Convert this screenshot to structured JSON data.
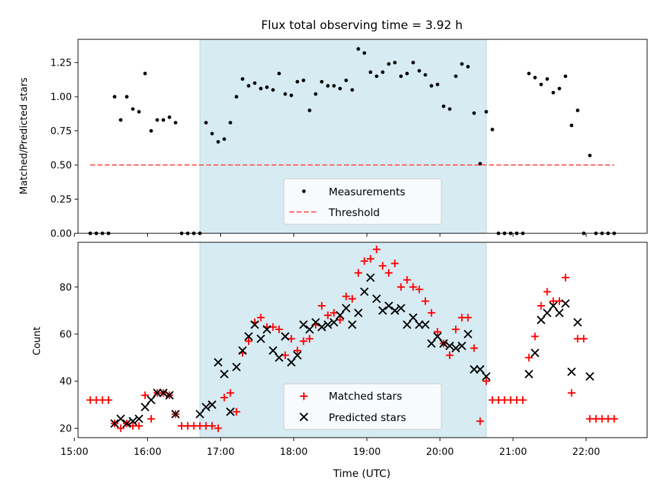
{
  "chart_data": [
    {
      "type": "scatter",
      "title": "Flux total observing time = 3.92 h",
      "xlabel": "",
      "ylabel": "Matched/Predicted stars",
      "xlim": [
        "15:03",
        "22:50"
      ],
      "ylim": [
        0,
        1.42
      ],
      "yticks": [
        0.0,
        0.25,
        0.5,
        0.75,
        1.0,
        1.25
      ],
      "yticklabels": [
        "0.00",
        "0.25",
        "0.50",
        "0.75",
        "1.00",
        "1.25"
      ],
      "highlight_span": [
        "16:43",
        "20:38"
      ],
      "legend": {
        "position": "lower-center",
        "entries": [
          "Measurements",
          "Threshold"
        ]
      },
      "threshold": {
        "name": "Threshold",
        "value": 0.5,
        "x": [
          "15:13",
          "22:23"
        ],
        "color": "#ff6666"
      },
      "series": [
        {
          "name": "Measurements",
          "color": "#000000",
          "points": [
            [
              "15:13",
              0
            ],
            [
              "15:18",
              0
            ],
            [
              "15:23",
              0
            ],
            [
              "15:28",
              0
            ],
            [
              "15:33",
              1.0
            ],
            [
              "15:38",
              0.83
            ],
            [
              "15:43",
              1.0
            ],
            [
              "15:48",
              0.91
            ],
            [
              "15:53",
              0.89
            ],
            [
              "15:58",
              1.17
            ],
            [
              "16:03",
              0.75
            ],
            [
              "16:08",
              0.83
            ],
            [
              "16:13",
              0.83
            ],
            [
              "16:18",
              0.85
            ],
            [
              "16:23",
              0.81
            ],
            [
              "16:28",
              0
            ],
            [
              "16:33",
              0
            ],
            [
              "16:38",
              0
            ],
            [
              "16:43",
              0
            ],
            [
              "16:48",
              0.81
            ],
            [
              "16:53",
              0.73
            ],
            [
              "16:58",
              0.67
            ],
            [
              "17:03",
              0.69
            ],
            [
              "17:08",
              0.81
            ],
            [
              "17:13",
              1.0
            ],
            [
              "17:18",
              1.13
            ],
            [
              "17:23",
              1.08
            ],
            [
              "17:28",
              1.1
            ],
            [
              "17:33",
              1.06
            ],
            [
              "17:38",
              1.07
            ],
            [
              "17:43",
              1.05
            ],
            [
              "17:48",
              1.17
            ],
            [
              "17:53",
              1.02
            ],
            [
              "17:58",
              1.01
            ],
            [
              "18:03",
              1.11
            ],
            [
              "18:08",
              1.12
            ],
            [
              "18:13",
              0.9
            ],
            [
              "18:18",
              1.02
            ],
            [
              "18:23",
              1.11
            ],
            [
              "18:28",
              1.08
            ],
            [
              "18:33",
              1.08
            ],
            [
              "18:38",
              1.06
            ],
            [
              "18:43",
              1.12
            ],
            [
              "18:48",
              1.05
            ],
            [
              "18:53",
              1.35
            ],
            [
              "18:58",
              1.32
            ],
            [
              "19:03",
              1.18
            ],
            [
              "19:08",
              1.15
            ],
            [
              "19:13",
              1.18
            ],
            [
              "19:18",
              1.24
            ],
            [
              "19:23",
              1.25
            ],
            [
              "19:28",
              1.15
            ],
            [
              "19:33",
              1.17
            ],
            [
              "19:38",
              1.25
            ],
            [
              "19:43",
              1.19
            ],
            [
              "19:48",
              1.16
            ],
            [
              "19:53",
              1.08
            ],
            [
              "19:58",
              1.09
            ],
            [
              "20:03",
              0.93
            ],
            [
              "20:08",
              0.91
            ],
            [
              "20:13",
              1.15
            ],
            [
              "20:18",
              1.24
            ],
            [
              "20:23",
              1.22
            ],
            [
              "20:28",
              0.88
            ],
            [
              "20:33",
              0.51
            ],
            [
              "20:38",
              0.89
            ],
            [
              "20:43",
              0.76
            ],
            [
              "20:48",
              0
            ],
            [
              "20:53",
              0
            ],
            [
              "20:58",
              0
            ],
            [
              "21:03",
              0
            ],
            [
              "21:08",
              0
            ],
            [
              "21:13",
              1.17
            ],
            [
              "21:18",
              1.14
            ],
            [
              "21:23",
              1.09
            ],
            [
              "21:28",
              1.13
            ],
            [
              "21:33",
              1.03
            ],
            [
              "21:38",
              1.06
            ],
            [
              "21:43",
              1.15
            ],
            [
              "21:48",
              0.79
            ],
            [
              "21:53",
              0.9
            ],
            [
              "21:58",
              0
            ],
            [
              "22:03",
              0.57
            ],
            [
              "22:08",
              0
            ],
            [
              "22:13",
              0
            ],
            [
              "22:18",
              0
            ],
            [
              "22:23",
              0
            ]
          ]
        }
      ]
    },
    {
      "type": "scatter",
      "title": "",
      "xlabel": "Time (UTC)",
      "ylabel": "Count",
      "xlim": [
        "15:03",
        "22:50"
      ],
      "ylim": [
        16,
        99
      ],
      "yticks": [
        20,
        40,
        60,
        80
      ],
      "xticks": [
        "15:00",
        "16:00",
        "17:00",
        "18:00",
        "19:00",
        "20:00",
        "21:00",
        "22:00"
      ],
      "highlight_span": [
        "16:43",
        "20:38"
      ],
      "legend": {
        "position": "lower-center",
        "entries": [
          "Matched stars",
          "Predicted stars"
        ]
      },
      "series": [
        {
          "name": "Matched stars",
          "marker": "plus",
          "color": "#ff0000",
          "points": [
            [
              "15:13",
              32
            ],
            [
              "15:18",
              32
            ],
            [
              "15:23",
              32
            ],
            [
              "15:28",
              32
            ],
            [
              "15:33",
              22
            ],
            [
              "15:38",
              20
            ],
            [
              "15:43",
              22
            ],
            [
              "15:48",
              21
            ],
            [
              "15:53",
              21
            ],
            [
              "15:58",
              34
            ],
            [
              "16:03",
              24
            ],
            [
              "16:08",
              35
            ],
            [
              "16:13",
              35
            ],
            [
              "16:18",
              34
            ],
            [
              "16:23",
              26
            ],
            [
              "16:28",
              21
            ],
            [
              "16:33",
              21
            ],
            [
              "16:38",
              21
            ],
            [
              "16:43",
              21
            ],
            [
              "16:48",
              21
            ],
            [
              "16:53",
              21
            ],
            [
              "16:58",
              20
            ],
            [
              "17:03",
              33
            ],
            [
              "17:08",
              35
            ],
            [
              "17:13",
              27
            ],
            [
              "17:18",
              52
            ],
            [
              "17:23",
              57
            ],
            [
              "17:28",
              65
            ],
            [
              "17:33",
              67
            ],
            [
              "17:38",
              63
            ],
            [
              "17:43",
              63
            ],
            [
              "17:48",
              62
            ],
            [
              "17:53",
              51
            ],
            [
              "17:58",
              58
            ],
            [
              "18:03",
              53
            ],
            [
              "18:08",
              57
            ],
            [
              "18:13",
              58
            ],
            [
              "18:18",
              64
            ],
            [
              "18:23",
              72
            ],
            [
              "18:28",
              68
            ],
            [
              "18:33",
              69
            ],
            [
              "18:38",
              66
            ],
            [
              "18:43",
              76
            ],
            [
              "18:48",
              75
            ],
            [
              "18:53",
              86
            ],
            [
              "18:58",
              91
            ],
            [
              "19:03",
              92
            ],
            [
              "19:08",
              96
            ],
            [
              "19:13",
              89
            ],
            [
              "19:18",
              86
            ],
            [
              "19:23",
              90
            ],
            [
              "19:28",
              80
            ],
            [
              "19:33",
              83
            ],
            [
              "19:38",
              80
            ],
            [
              "19:43",
              79
            ],
            [
              "19:48",
              74
            ],
            [
              "19:53",
              69
            ],
            [
              "19:58",
              61
            ],
            [
              "20:03",
              56
            ],
            [
              "20:08",
              51
            ],
            [
              "20:13",
              62
            ],
            [
              "20:18",
              67
            ],
            [
              "20:23",
              67
            ],
            [
              "20:28",
              54
            ],
            [
              "20:33",
              23
            ],
            [
              "20:38",
              40
            ],
            [
              "20:43",
              32
            ],
            [
              "20:48",
              32
            ],
            [
              "20:53",
              32
            ],
            [
              "20:58",
              32
            ],
            [
              "21:03",
              32
            ],
            [
              "21:08",
              32
            ],
            [
              "21:13",
              50
            ],
            [
              "21:18",
              59
            ],
            [
              "21:23",
              72
            ],
            [
              "21:28",
              78
            ],
            [
              "21:33",
              74
            ],
            [
              "21:38",
              74
            ],
            [
              "21:43",
              84
            ],
            [
              "21:48",
              35
            ],
            [
              "21:53",
              58
            ],
            [
              "21:58",
              58
            ],
            [
              "22:03",
              24
            ],
            [
              "22:08",
              24
            ],
            [
              "22:13",
              24
            ],
            [
              "22:18",
              24
            ],
            [
              "22:23",
              24
            ]
          ]
        },
        {
          "name": "Predicted stars",
          "marker": "x",
          "color": "#000000",
          "points": [
            [
              "15:33",
              22
            ],
            [
              "15:38",
              24
            ],
            [
              "15:43",
              22
            ],
            [
              "15:48",
              23
            ],
            [
              "15:53",
              24
            ],
            [
              "15:58",
              29
            ],
            [
              "16:03",
              32
            ],
            [
              "16:08",
              35
            ],
            [
              "16:13",
              35
            ],
            [
              "16:18",
              34
            ],
            [
              "16:23",
              26
            ],
            [
              "16:43",
              26
            ],
            [
              "16:48",
              29
            ],
            [
              "16:53",
              30
            ],
            [
              "16:58",
              48
            ],
            [
              "17:03",
              43
            ],
            [
              "17:08",
              27
            ],
            [
              "17:13",
              46
            ],
            [
              "17:18",
              53
            ],
            [
              "17:23",
              59
            ],
            [
              "17:28",
              64
            ],
            [
              "17:33",
              58
            ],
            [
              "17:38",
              62
            ],
            [
              "17:43",
              53
            ],
            [
              "17:48",
              50
            ],
            [
              "17:53",
              59
            ],
            [
              "17:58",
              48
            ],
            [
              "18:03",
              51
            ],
            [
              "18:08",
              64
            ],
            [
              "18:13",
              62
            ],
            [
              "18:18",
              65
            ],
            [
              "18:23",
              63
            ],
            [
              "18:28",
              64
            ],
            [
              "18:33",
              65
            ],
            [
              "18:38",
              68
            ],
            [
              "18:43",
              71
            ],
            [
              "18:48",
              64
            ],
            [
              "18:53",
              69
            ],
            [
              "18:58",
              78
            ],
            [
              "19:03",
              84
            ],
            [
              "19:08",
              75
            ],
            [
              "19:13",
              70
            ],
            [
              "19:18",
              72
            ],
            [
              "19:23",
              70
            ],
            [
              "19:28",
              71
            ],
            [
              "19:33",
              64
            ],
            [
              "19:38",
              67
            ],
            [
              "19:43",
              64
            ],
            [
              "19:48",
              64
            ],
            [
              "19:53",
              56
            ],
            [
              "19:58",
              59
            ],
            [
              "20:03",
              56
            ],
            [
              "20:08",
              55
            ],
            [
              "20:13",
              54
            ],
            [
              "20:18",
              55
            ],
            [
              "20:23",
              60
            ],
            [
              "20:28",
              45
            ],
            [
              "20:33",
              45
            ],
            [
              "20:38",
              42
            ],
            [
              "21:13",
              43
            ],
            [
              "21:18",
              52
            ],
            [
              "21:23",
              66
            ],
            [
              "21:28",
              69
            ],
            [
              "21:33",
              72
            ],
            [
              "21:38",
              69
            ],
            [
              "21:43",
              73
            ],
            [
              "21:48",
              44
            ],
            [
              "21:53",
              65
            ],
            [
              "22:03",
              42
            ]
          ]
        }
      ]
    }
  ]
}
